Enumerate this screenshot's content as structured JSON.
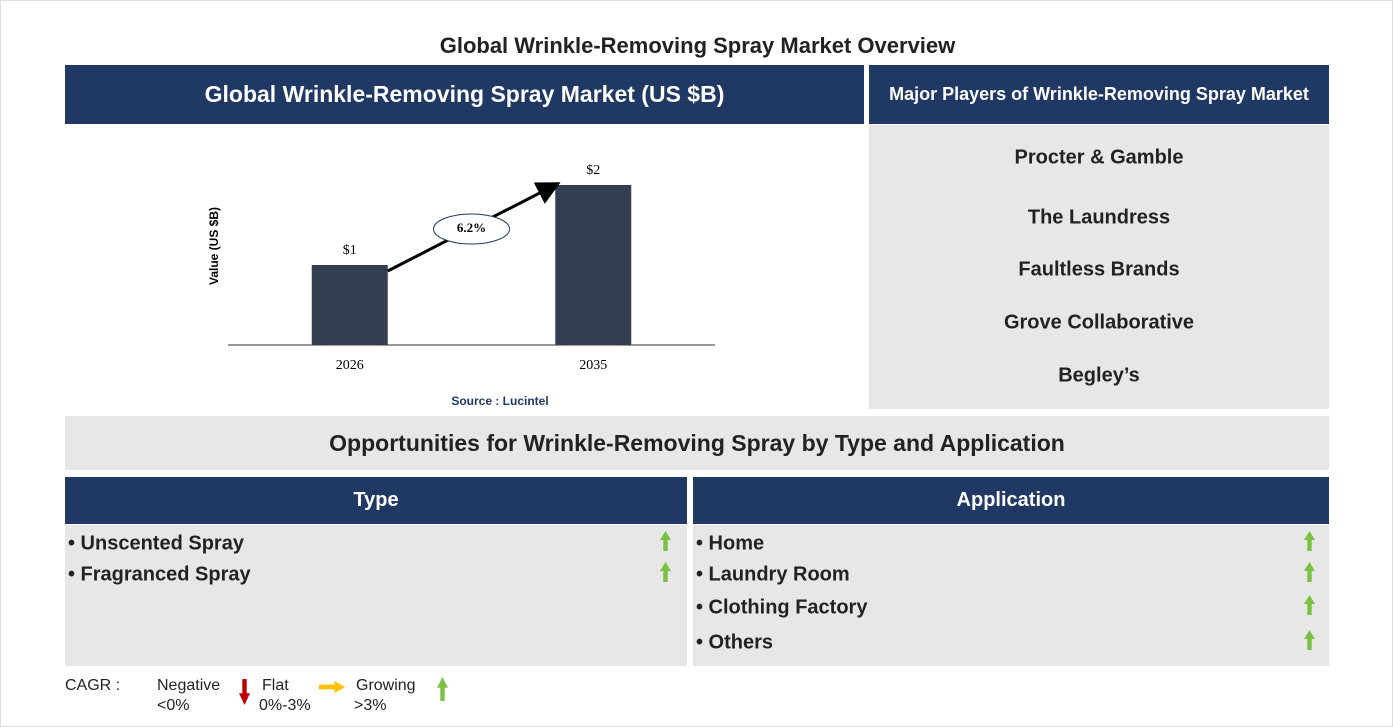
{
  "title": "Global Wrinkle-Removing Spray Market Overview",
  "chart_data": {
    "type": "bar",
    "title": "Global Wrinkle-Removing Spray Market (US $B)",
    "y_label": "Value (US $B)",
    "categories": [
      "2026",
      "2035"
    ],
    "values": [
      1,
      2
    ],
    "value_labels": [
      "$1",
      "$2"
    ],
    "color": "#333f50",
    "ylim": [
      0,
      2.25
    ],
    "annotation": "6.2%",
    "source": "Source : Lucintel"
  },
  "players": {
    "title": "Major Players of Wrinkle-Removing Spray Market",
    "items": [
      "Procter & Gamble",
      "The Laundress",
      "Faultless Brands",
      "Grove Collaborative",
      "Begley’s"
    ]
  },
  "opportunities": {
    "title": "Opportunities for Wrinkle-Removing Spray by Type and Application",
    "type": {
      "title": "Type",
      "items": [
        "• Unscented Spray",
        "• Fragranced Spray"
      ]
    },
    "application": {
      "title": "Application",
      "items": [
        "• Home",
        "• Laundry Room",
        "• Clothing Factory",
        "• Others"
      ]
    }
  },
  "legend": {
    "label": "CAGR :",
    "negative": "Negative",
    "negative_range": "<0%",
    "flat": "Flat",
    "flat_range": "0%-3%",
    "growing": "Growing",
    "growing_range": ">3%"
  }
}
